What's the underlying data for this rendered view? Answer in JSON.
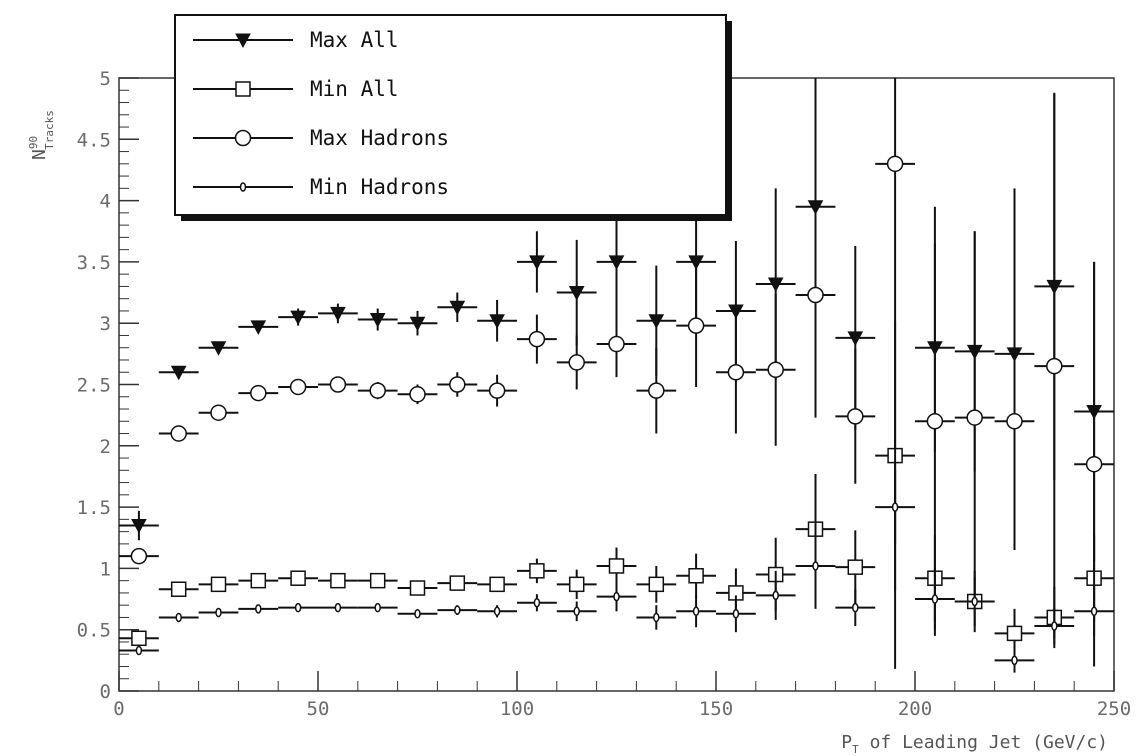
{
  "chart_data": {
    "type": "scatter",
    "xlabel": "P",
    "xlabel_sub": "T",
    "xlabel_rest": " of Leading Jet (GeV/c)",
    "ylabel": "N",
    "ylabel_sup": "90",
    "ylabel_sub": "Tracks",
    "xlim": [
      0,
      250
    ],
    "ylim": [
      0,
      5
    ],
    "x_ticks": [
      "0",
      "50",
      "100",
      "150",
      "200",
      "250"
    ],
    "y_ticks": [
      "0",
      "0.5",
      "1",
      "1.5",
      "2",
      "2.5",
      "3",
      "3.5",
      "4",
      "4.5",
      "5"
    ],
    "legend_position": "top-left",
    "x_bin_halfwidth": 5,
    "series": [
      {
        "name": "Max All",
        "marker": "triangle-down",
        "points": [
          {
            "x": 5,
            "y": 1.35,
            "err": 0.12
          },
          {
            "x": 15,
            "y": 2.6,
            "err": 0.04
          },
          {
            "x": 25,
            "y": 2.8,
            "err": 0.04
          },
          {
            "x": 35,
            "y": 2.97,
            "err": 0.05
          },
          {
            "x": 45,
            "y": 3.05,
            "err": 0.07
          },
          {
            "x": 55,
            "y": 3.08,
            "err": 0.08
          },
          {
            "x": 65,
            "y": 3.03,
            "err": 0.09
          },
          {
            "x": 75,
            "y": 3.0,
            "err": 0.1
          },
          {
            "x": 85,
            "y": 3.13,
            "err": 0.12
          },
          {
            "x": 95,
            "y": 3.02,
            "err": 0.17
          },
          {
            "x": 105,
            "y": 3.5,
            "err": 0.25
          },
          {
            "x": 115,
            "y": 3.25,
            "err": 0.43
          },
          {
            "x": 125,
            "y": 3.5,
            "err": 0.45
          },
          {
            "x": 135,
            "y": 3.02,
            "err": 0.45
          },
          {
            "x": 145,
            "y": 3.5,
            "err": 0.55
          },
          {
            "x": 155,
            "y": 3.1,
            "err": 0.57
          },
          {
            "x": 165,
            "y": 3.32,
            "err": 0.78
          },
          {
            "x": 175,
            "y": 3.95,
            "err": 1.7
          },
          {
            "x": 185,
            "y": 2.88,
            "err": 0.75
          },
          {
            "x": 205,
            "y": 2.8,
            "err": 0.85
          },
          {
            "x": 215,
            "y": 2.77,
            "err": 0.98
          },
          {
            "x": 225,
            "y": 2.75,
            "err": 1.35
          },
          {
            "x": 235,
            "y": 3.3,
            "err": 1.58
          },
          {
            "x": 245,
            "y": 2.28,
            "err": 1.22
          }
        ]
      },
      {
        "name": "Min All",
        "marker": "square-open",
        "points": [
          {
            "x": 5,
            "y": 0.43,
            "err": 0.04
          },
          {
            "x": 15,
            "y": 0.83,
            "err": 0.02
          },
          {
            "x": 25,
            "y": 0.87,
            "err": 0.02
          },
          {
            "x": 35,
            "y": 0.9,
            "err": 0.02
          },
          {
            "x": 45,
            "y": 0.92,
            "err": 0.03
          },
          {
            "x": 55,
            "y": 0.9,
            "err": 0.03
          },
          {
            "x": 65,
            "y": 0.9,
            "err": 0.04
          },
          {
            "x": 75,
            "y": 0.84,
            "err": 0.04
          },
          {
            "x": 85,
            "y": 0.88,
            "err": 0.05
          },
          {
            "x": 95,
            "y": 0.87,
            "err": 0.06
          },
          {
            "x": 105,
            "y": 0.98,
            "err": 0.1
          },
          {
            "x": 115,
            "y": 0.87,
            "err": 0.12
          },
          {
            "x": 125,
            "y": 1.02,
            "err": 0.15
          },
          {
            "x": 135,
            "y": 0.87,
            "err": 0.15
          },
          {
            "x": 145,
            "y": 0.94,
            "err": 0.18
          },
          {
            "x": 155,
            "y": 0.8,
            "err": 0.2
          },
          {
            "x": 165,
            "y": 0.95,
            "err": 0.3
          },
          {
            "x": 175,
            "y": 1.32,
            "err": 0.45
          },
          {
            "x": 185,
            "y": 1.01,
            "err": 0.3
          },
          {
            "x": 195,
            "y": 1.92,
            "err": 1.1
          },
          {
            "x": 205,
            "y": 0.92,
            "err": 0.35
          },
          {
            "x": 215,
            "y": 0.73,
            "err": 0.25
          },
          {
            "x": 225,
            "y": 0.47,
            "err": 0.2
          },
          {
            "x": 235,
            "y": 0.6,
            "err": 0.25
          },
          {
            "x": 245,
            "y": 0.92,
            "err": 0.35
          }
        ]
      },
      {
        "name": "Max Hadrons",
        "marker": "circle-open",
        "points": [
          {
            "x": 5,
            "y": 1.1,
            "err": 0.06
          },
          {
            "x": 15,
            "y": 2.1,
            "err": 0.03
          },
          {
            "x": 25,
            "y": 2.27,
            "err": 0.03
          },
          {
            "x": 35,
            "y": 2.43,
            "err": 0.04
          },
          {
            "x": 45,
            "y": 2.48,
            "err": 0.05
          },
          {
            "x": 55,
            "y": 2.5,
            "err": 0.06
          },
          {
            "x": 65,
            "y": 2.45,
            "err": 0.07
          },
          {
            "x": 75,
            "y": 2.42,
            "err": 0.08
          },
          {
            "x": 85,
            "y": 2.5,
            "err": 0.1
          },
          {
            "x": 95,
            "y": 2.45,
            "err": 0.13
          },
          {
            "x": 105,
            "y": 2.87,
            "err": 0.2
          },
          {
            "x": 115,
            "y": 2.68,
            "err": 0.22
          },
          {
            "x": 125,
            "y": 2.83,
            "err": 0.27
          },
          {
            "x": 135,
            "y": 2.45,
            "err": 0.35
          },
          {
            "x": 145,
            "y": 2.98,
            "err": 0.5
          },
          {
            "x": 155,
            "y": 2.6,
            "err": 0.5
          },
          {
            "x": 165,
            "y": 2.62,
            "err": 0.62
          },
          {
            "x": 175,
            "y": 3.23,
            "err": 1.0
          },
          {
            "x": 185,
            "y": 2.24,
            "err": 0.55
          },
          {
            "x": 195,
            "y": 4.3,
            "err": 4.12
          },
          {
            "x": 205,
            "y": 2.2,
            "err": 1.75
          },
          {
            "x": 215,
            "y": 2.23,
            "err": 1.52
          },
          {
            "x": 225,
            "y": 2.2,
            "err": 1.05
          },
          {
            "x": 235,
            "y": 2.65,
            "err": 2.22
          },
          {
            "x": 245,
            "y": 1.85,
            "err": 1.65
          }
        ]
      },
      {
        "name": "Min Hadrons",
        "marker": "diamond-small",
        "points": [
          {
            "x": 5,
            "y": 0.33,
            "err": 0.03
          },
          {
            "x": 15,
            "y": 0.6,
            "err": 0.02
          },
          {
            "x": 25,
            "y": 0.64,
            "err": 0.02
          },
          {
            "x": 35,
            "y": 0.67,
            "err": 0.02
          },
          {
            "x": 45,
            "y": 0.68,
            "err": 0.02
          },
          {
            "x": 55,
            "y": 0.68,
            "err": 0.03
          },
          {
            "x": 65,
            "y": 0.68,
            "err": 0.03
          },
          {
            "x": 75,
            "y": 0.63,
            "err": 0.03
          },
          {
            "x": 85,
            "y": 0.66,
            "err": 0.04
          },
          {
            "x": 95,
            "y": 0.65,
            "err": 0.05
          },
          {
            "x": 105,
            "y": 0.72,
            "err": 0.07
          },
          {
            "x": 115,
            "y": 0.65,
            "err": 0.08
          },
          {
            "x": 125,
            "y": 0.77,
            "err": 0.12
          },
          {
            "x": 135,
            "y": 0.6,
            "err": 0.1
          },
          {
            "x": 145,
            "y": 0.65,
            "err": 0.13
          },
          {
            "x": 155,
            "y": 0.63,
            "err": 0.15
          },
          {
            "x": 165,
            "y": 0.78,
            "err": 0.2
          },
          {
            "x": 175,
            "y": 1.02,
            "err": 0.35
          },
          {
            "x": 185,
            "y": 0.68,
            "err": 0.15
          },
          {
            "x": 195,
            "y": 1.5,
            "err": 0.3
          },
          {
            "x": 205,
            "y": 0.75,
            "err": 0.25
          },
          {
            "x": 215,
            "y": 0.73,
            "err": 0.2
          },
          {
            "x": 225,
            "y": 0.25,
            "err": 0.1
          },
          {
            "x": 235,
            "y": 0.53,
            "err": 0.15
          },
          {
            "x": 245,
            "y": 0.65,
            "err": 0.2
          }
        ]
      }
    ]
  }
}
